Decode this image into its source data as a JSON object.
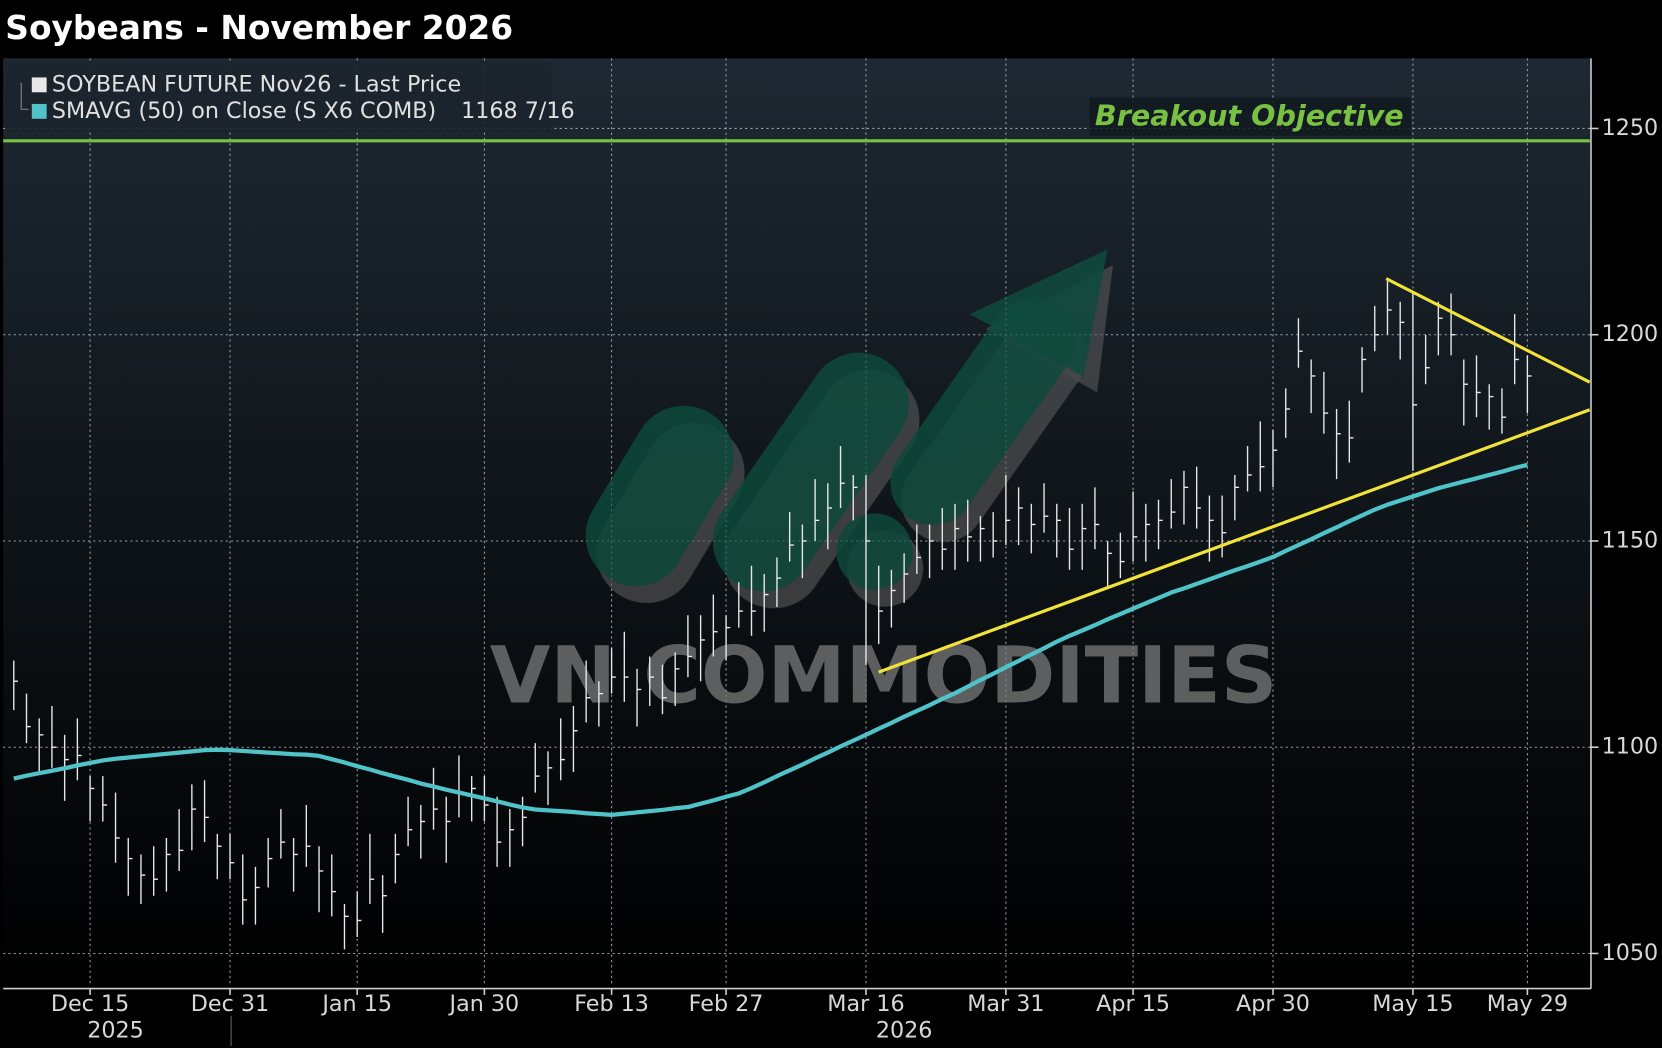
{
  "chart_data": {
    "type": "ohlc",
    "title": "Soybeans - November 2026",
    "categories": [
      null,
      null,
      null,
      null,
      null,
      null,
      "Dec 15",
      null,
      null,
      null,
      null,
      null,
      null,
      null,
      null,
      null,
      null,
      "Dec 31",
      null,
      null,
      null,
      null,
      null,
      null,
      null,
      null,
      null,
      "Jan 15",
      null,
      null,
      null,
      null,
      null,
      null,
      null,
      null,
      null,
      "Jan 30",
      null,
      null,
      null,
      null,
      null,
      null,
      null,
      null,
      null,
      "Feb 13",
      null,
      null,
      null,
      null,
      null,
      null,
      null,
      null,
      "Feb 27",
      null,
      null,
      null,
      null,
      null,
      null,
      null,
      null,
      null,
      null,
      "Mar 16",
      null,
      null,
      null,
      null,
      null,
      null,
      null,
      null,
      null,
      null,
      "Mar 31",
      null,
      null,
      null,
      null,
      null,
      null,
      null,
      null,
      null,
      "Apr 15",
      null,
      null,
      null,
      null,
      null,
      null,
      null,
      null,
      null,
      null,
      "Apr 30",
      null,
      null,
      null,
      null,
      null,
      null,
      null,
      null,
      null,
      null,
      "May 15",
      null,
      null,
      null,
      null,
      null,
      null,
      null,
      null,
      "May 29"
    ],
    "years": [
      "2025",
      "2026"
    ],
    "series": [
      {
        "name": "SOYBEAN FUTURE Nov26 - Last Price",
        "color": "#e8e8e8",
        "values": [
          1116,
          1105,
          1103,
          1100,
          1097,
          1098,
          1090,
          1086,
          1078,
          1073,
          1069,
          1068,
          1074,
          1075,
          1085,
          1083,
          1076,
          1072,
          1063,
          1066,
          1073,
          1077,
          1074,
          1076,
          1070,
          1065,
          1059,
          1058,
          1068,
          1064,
          1074,
          1080,
          1082,
          1085,
          1082,
          1089,
          1090,
          1086,
          1077,
          1080,
          1083,
          1093,
          1095,
          1097,
          1104,
          1112,
          1113,
          1117,
          1117,
          1114,
          1117,
          1112,
          1119,
          1122,
          1126,
          1128,
          1129,
          1133,
          1133,
          1137,
          1141,
          1149,
          1150,
          1155,
          1158,
          1164,
          1163,
          1150,
          1133,
          1138,
          1142,
          1146,
          1150,
          1148,
          1153,
          1151,
          1153,
          1150,
          1155,
          1158,
          1154,
          1156,
          1155,
          1148,
          1153,
          1154,
          1147,
          1145,
          1151,
          1154,
          1155,
          1157,
          1163,
          1158,
          1155,
          1152,
          1163,
          1166,
          1168,
          1172,
          1182,
          1196,
          1190,
          1181,
          1176,
          1175,
          1194,
          1200,
          1206,
          1203,
          1183,
          1192,
          1204,
          1200,
          1188,
          1186,
          1185,
          1180,
          1194,
          1190
        ],
        "high": [
          1121,
          1113,
          1107,
          1110,
          1103,
          1107,
          1093,
          1093,
          1089,
          1078,
          1074,
          1076,
          1078,
          1085,
          1091,
          1092,
          1079,
          1079,
          1074,
          1071,
          1078,
          1085,
          1078,
          1086,
          1076,
          1074,
          1062,
          1065,
          1079,
          1069,
          1079,
          1088,
          1086,
          1095,
          1088,
          1098,
          1093,
          1093,
          1088,
          1085,
          1088,
          1101,
          1099,
          1107,
          1110,
          1121,
          1116,
          1124,
          1128,
          1119,
          1122,
          1120,
          1123,
          1132,
          1132,
          1137,
          1132,
          1140,
          1144,
          1142,
          1146,
          1157,
          1154,
          1165,
          1164,
          1173,
          1166,
          1166,
          1144,
          1143,
          1147,
          1154,
          1154,
          1158,
          1159,
          1160,
          1156,
          1157,
          1166,
          1163,
          1159,
          1164,
          1159,
          1158,
          1159,
          1163,
          1150,
          1152,
          1162,
          1159,
          1160,
          1165,
          1167,
          1168,
          1161,
          1161,
          1166,
          1173,
          1179,
          1177,
          1187,
          1204,
          1194,
          1191,
          1182,
          1184,
          1197,
          1207,
          1213,
          1208,
          1210,
          1200,
          1208,
          1210,
          1194,
          1195,
          1188,
          1187,
          1205,
          1195
        ],
        "low": [
          1109,
          1101,
          1094,
          1095,
          1087,
          1092,
          1082,
          1082,
          1072,
          1064,
          1062,
          1064,
          1065,
          1070,
          1075,
          1077,
          1068,
          1068,
          1057,
          1057,
          1066,
          1073,
          1065,
          1071,
          1060,
          1059,
          1051,
          1054,
          1062,
          1055,
          1067,
          1076,
          1073,
          1080,
          1072,
          1083,
          1082,
          1082,
          1071,
          1071,
          1076,
          1089,
          1086,
          1092,
          1094,
          1106,
          1105,
          1113,
          1111,
          1105,
          1110,
          1108,
          1110,
          1117,
          1116,
          1122,
          1121,
          1129,
          1127,
          1128,
          1134,
          1145,
          1141,
          1150,
          1148,
          1158,
          1155,
          1120,
          1125,
          1129,
          1135,
          1142,
          1141,
          1143,
          1143,
          1145,
          1145,
          1146,
          1149,
          1149,
          1147,
          1152,
          1146,
          1143,
          1143,
          1148,
          1139,
          1141,
          1145,
          1145,
          1148,
          1153,
          1154,
          1153,
          1145,
          1146,
          1155,
          1162,
          1162,
          1163,
          1175,
          1192,
          1181,
          1176,
          1165,
          1169,
          1186,
          1196,
          1200,
          1194,
          1167,
          1188,
          1195,
          1195,
          1178,
          1180,
          1177,
          1176,
          1188,
          1181
        ]
      },
      {
        "name": "SMAVG (50)  on Close (S X6 COMB)",
        "color": "#4fc3c8",
        "legend_value": {
          "value": 1168.4375,
          "label": "1168 7/16"
        },
        "values": [
          1092.4,
          1093.1,
          1093.7,
          1094.3,
          1094.9,
          1095.6,
          1096.2,
          1096.8,
          1097.2,
          1097.5,
          1097.8,
          1098.1,
          1098.4,
          1098.7,
          1099,
          1099.3,
          1099.4,
          1099.3,
          1099.1,
          1098.9,
          1098.7,
          1098.5,
          1098.3,
          1098.2,
          1097.9,
          1097.1,
          1096.3,
          1095.4,
          1094.6,
          1093.7,
          1092.9,
          1092.1,
          1091.2,
          1090.5,
          1089.7,
          1089,
          1088.3,
          1087.6,
          1086.9,
          1086.1,
          1085.4,
          1084.9,
          1084.7,
          1084.5,
          1084.3,
          1084,
          1083.8,
          1083.6,
          1083.9,
          1084.2,
          1084.5,
          1084.8,
          1085.2,
          1085.5,
          1086.3,
          1087.1,
          1088,
          1088.8,
          1090.1,
          1091.5,
          1093,
          1094.4,
          1095.8,
          1097.3,
          1098.7,
          1100.2,
          1101.6,
          1103,
          1104.5,
          1105.9,
          1107.4,
          1108.8,
          1110.2,
          1111.7,
          1113.1,
          1114.7,
          1116.3,
          1117.8,
          1119.4,
          1120.9,
          1122.5,
          1124,
          1125.6,
          1127,
          1128.3,
          1129.6,
          1131,
          1132.3,
          1133.6,
          1134.9,
          1136.2,
          1137.5,
          1138.5,
          1139.6,
          1140.7,
          1141.8,
          1142.9,
          1143.9,
          1145,
          1146.1,
          1147.6,
          1149,
          1150.4,
          1151.9,
          1153.3,
          1154.8,
          1156.2,
          1157.6,
          1158.8,
          1159.8,
          1160.8,
          1161.8,
          1162.8,
          1163.6,
          1164.4,
          1165.2,
          1166,
          1166.8,
          1167.7,
          1168.4375
        ]
      }
    ],
    "trendlines": [
      {
        "color": "#f2e33a",
        "x": [
          107.9,
          123.9
        ],
        "values": [
          1213.6,
          1188.5
        ]
      },
      {
        "color": "#f2e33a",
        "x": [
          68,
          123.9
        ],
        "values": [
          1118.2,
          1181.8
        ]
      }
    ],
    "objective": {
      "label": "Breakout Objective",
      "value": 1247,
      "color": "#7ac143"
    },
    "watermark": "VN COMMODITIES",
    "ylim": [
      1042,
      1267
    ],
    "yticks": [
      1050,
      1100,
      1150,
      1200,
      1250
    ],
    "grid": true
  }
}
